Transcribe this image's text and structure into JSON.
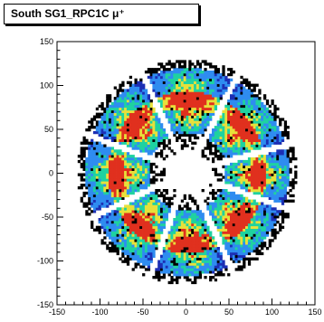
{
  "chart_data": {
    "type": "heatmap",
    "title": "South SG1_RPC1C μ⁺",
    "xlabel": "",
    "ylabel": "",
    "xlim": [
      -150,
      150
    ],
    "ylim": [
      -150,
      150
    ],
    "x_ticks": [
      -150,
      -100,
      -50,
      0,
      50,
      100,
      150
    ],
    "y_ticks": [
      -150,
      -100,
      -50,
      0,
      50,
      100,
      150
    ],
    "x_tick_labels": [
      "-150",
      "-100",
      "-50",
      "0",
      "50",
      "100",
      "150"
    ],
    "y_tick_labels": [
      "-150",
      "-100",
      "-50",
      "0",
      "50",
      "100",
      "150"
    ],
    "description_shape": "octagonal ring of 8 detector sectors",
    "inner_radius": 25,
    "outer_radius": 128,
    "sector_count": 8,
    "gap_angles_deg": [
      15,
      62,
      115,
      160,
      205,
      250,
      295,
      340
    ],
    "colors": {
      "sparse": "#000000",
      "low": "#1c2fb4",
      "mid": "#2f8cf0",
      "high": "#1fd2a0",
      "peak": "#e8e03a",
      "max": "#e0301e"
    }
  }
}
